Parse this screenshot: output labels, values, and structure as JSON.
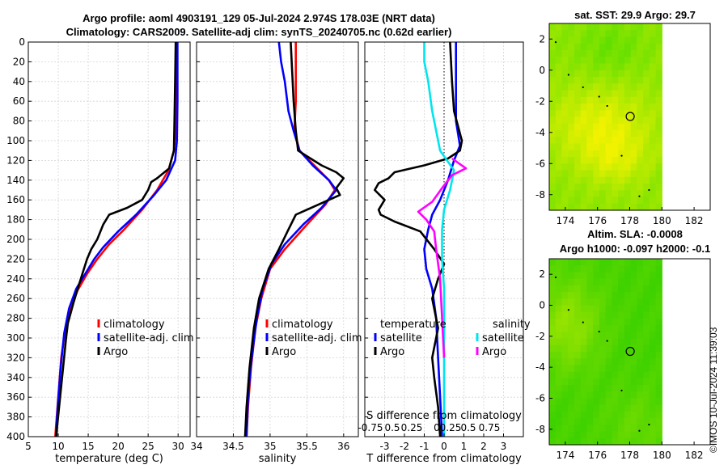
{
  "header": {
    "title_line1": "Argo profile: aoml 4903191_129 05-Jul-2024 2.974S 178.03E (NRT data)",
    "title_line2": "Climatology: CARS2009. Satellite-adj clim: synTS_20240705.nc (0.62d earlier)"
  },
  "colors": {
    "climatology": "#ff0000",
    "satellite": "#0000ff",
    "argo": "#000000",
    "satellite_salinity": "#00e5ee",
    "argo_salinity": "#ff00ff"
  },
  "credit": "©IMOS 10-Jul-2024 11:39:03",
  "chart_data": [
    {
      "id": "temperature-profile",
      "type": "line",
      "xlabel": "temperature (deg C)",
      "xlim": [
        5,
        32
      ],
      "xticks": [
        5,
        10,
        15,
        20,
        25,
        30
      ],
      "ylim": [
        0,
        400
      ],
      "yticks": [
        0,
        20,
        40,
        60,
        80,
        100,
        120,
        140,
        160,
        180,
        200,
        220,
        240,
        260,
        280,
        300,
        320,
        340,
        360,
        380,
        400
      ],
      "legend": [
        "climatology",
        "satellite-adj. clim",
        "Argo"
      ],
      "series": [
        {
          "name": "climatology",
          "color": "#ff0000",
          "points": [
            [
              29.8,
              0
            ],
            [
              29.8,
              40
            ],
            [
              29.7,
              80
            ],
            [
              29.3,
              110
            ],
            [
              28.4,
              130
            ],
            [
              26.5,
              150
            ],
            [
              24,
              170
            ],
            [
              21,
              190
            ],
            [
              18.5,
              205
            ],
            [
              16.5,
              220
            ],
            [
              14.8,
              235
            ],
            [
              13.2,
              252
            ],
            [
              12,
              270
            ],
            [
              11.2,
              290
            ],
            [
              10.5,
              320
            ],
            [
              10,
              360
            ],
            [
              9.5,
              400
            ]
          ]
        },
        {
          "name": "satellite-adj. clim",
          "color": "#0000ff",
          "points": [
            [
              29.9,
              0
            ],
            [
              29.9,
              60
            ],
            [
              29.8,
              100
            ],
            [
              29.5,
              120
            ],
            [
              28,
              140
            ],
            [
              26,
              155
            ],
            [
              23,
              175
            ],
            [
              20,
              192
            ],
            [
              17.5,
              208
            ],
            [
              16,
              220
            ],
            [
              14.5,
              235
            ],
            [
              13,
              250
            ],
            [
              11.8,
              270
            ],
            [
              11,
              295
            ],
            [
              10.4,
              330
            ],
            [
              9.9,
              370
            ],
            [
              9.6,
              400
            ]
          ]
        },
        {
          "name": "Argo",
          "color": "#000000",
          "points": [
            [
              29.6,
              0
            ],
            [
              29.5,
              40
            ],
            [
              29.4,
              80
            ],
            [
              29.3,
              110
            ],
            [
              28.5,
              128
            ],
            [
              26.5,
              138
            ],
            [
              25.5,
              142
            ],
            [
              25,
              150
            ],
            [
              24,
              160
            ],
            [
              21.5,
              168
            ],
            [
              18.5,
              175
            ],
            [
              17.5,
              185
            ],
            [
              16.5,
              200
            ],
            [
              15.5,
              210
            ],
            [
              14.8,
              220
            ],
            [
              13.5,
              245
            ],
            [
              12.5,
              265
            ],
            [
              11.6,
              285
            ],
            [
              11.3,
              300
            ],
            [
              10.8,
              330
            ],
            [
              10.3,
              360
            ],
            [
              9.8,
              390
            ],
            [
              9.7,
              400
            ]
          ]
        }
      ]
    },
    {
      "id": "salinity-profile",
      "type": "line",
      "xlabel": "salinity",
      "xlim": [
        34,
        36.2
      ],
      "xticks": [
        34,
        34.5,
        35,
        35.5,
        36
      ],
      "ylim": [
        0,
        400
      ],
      "legend": [
        "climatology",
        "satellite-adj. clim",
        "Argo"
      ],
      "series": [
        {
          "name": "climatology",
          "color": "#ff0000",
          "points": [
            [
              35.35,
              0
            ],
            [
              35.35,
              60
            ],
            [
              35.33,
              90
            ],
            [
              35.4,
              110
            ],
            [
              35.6,
              125
            ],
            [
              35.8,
              140
            ],
            [
              35.88,
              150
            ],
            [
              35.75,
              165
            ],
            [
              35.5,
              185
            ],
            [
              35.2,
              210
            ],
            [
              35,
              230
            ],
            [
              34.88,
              260
            ],
            [
              34.8,
              290
            ],
            [
              34.74,
              330
            ],
            [
              34.7,
              370
            ],
            [
              34.68,
              400
            ]
          ]
        },
        {
          "name": "satellite-adj. clim",
          "color": "#0000ff",
          "points": [
            [
              35.12,
              0
            ],
            [
              35.15,
              20
            ],
            [
              35.2,
              40
            ],
            [
              35.25,
              70
            ],
            [
              35.32,
              90
            ],
            [
              35.4,
              110
            ],
            [
              35.58,
              125
            ],
            [
              35.8,
              140
            ],
            [
              35.9,
              150
            ],
            [
              35.7,
              168
            ],
            [
              35.45,
              185
            ],
            [
              35.2,
              205
            ],
            [
              35.02,
              225
            ],
            [
              34.9,
              250
            ],
            [
              34.82,
              280
            ],
            [
              34.75,
              320
            ],
            [
              34.7,
              360
            ],
            [
              34.68,
              400
            ]
          ]
        },
        {
          "name": "Argo",
          "color": "#000000",
          "points": [
            [
              35.28,
              0
            ],
            [
              35.3,
              30
            ],
            [
              35.32,
              60
            ],
            [
              35.35,
              90
            ],
            [
              35.38,
              110
            ],
            [
              35.55,
              118
            ],
            [
              35.7,
              125
            ],
            [
              35.9,
              132
            ],
            [
              36,
              138
            ],
            [
              35.9,
              148
            ],
            [
              35.95,
              155
            ],
            [
              35.65,
              165
            ],
            [
              35.35,
              175
            ],
            [
              35.25,
              190
            ],
            [
              35.12,
              210
            ],
            [
              34.98,
              230
            ],
            [
              34.85,
              260
            ],
            [
              34.78,
              290
            ],
            [
              34.72,
              330
            ],
            [
              34.68,
              370
            ],
            [
              34.66,
              400
            ]
          ]
        }
      ]
    },
    {
      "id": "difference-profile",
      "type": "line",
      "xlabel": "T difference from climatology",
      "xlabel_top": "S difference from climatology",
      "xlim": [
        -4,
        4
      ],
      "xticks": [
        -3,
        -2,
        -1,
        0,
        1,
        2,
        3
      ],
      "s_ticks": [
        "-0.75",
        "0.5",
        "0.25",
        "0",
        "0.25",
        "0.5",
        "0.75"
      ],
      "ylim": [
        0,
        400
      ],
      "legend_groups": [
        {
          "label": "temperature",
          "entries": [
            "satellite",
            "Argo"
          ]
        },
        {
          "label": "salinity",
          "entries": [
            "satellite",
            "Argo"
          ]
        }
      ],
      "series": [
        {
          "name": "temperature satellite",
          "color": "#0000ff",
          "points": [
            [
              0.6,
              0
            ],
            [
              0.6,
              40
            ],
            [
              0.6,
              80
            ],
            [
              0.8,
              105
            ],
            [
              0.5,
              120
            ],
            [
              0.2,
              140
            ],
            [
              -0.2,
              160
            ],
            [
              -0.6,
              175
            ],
            [
              -0.8,
              190
            ],
            [
              -1,
              210
            ],
            [
              -0.9,
              230
            ],
            [
              -0.6,
              250
            ],
            [
              -0.4,
              280
            ],
            [
              -0.3,
              320
            ],
            [
              -0.2,
              360
            ],
            [
              -0.1,
              400
            ]
          ]
        },
        {
          "name": "temperature Argo",
          "color": "#000000",
          "points": [
            [
              0.3,
              0
            ],
            [
              0.4,
              40
            ],
            [
              0.5,
              70
            ],
            [
              0.9,
              100
            ],
            [
              0.8,
              110
            ],
            [
              0.2,
              118
            ],
            [
              -1,
              125
            ],
            [
              -2.5,
              132
            ],
            [
              -2.8,
              138
            ],
            [
              -3.3,
              143
            ],
            [
              -3.5,
              150
            ],
            [
              -3,
              160
            ],
            [
              -3.3,
              170
            ],
            [
              -3.2,
              175
            ],
            [
              -2.5,
              182
            ],
            [
              -1.2,
              192
            ],
            [
              -0.5,
              210
            ],
            [
              0,
              225
            ],
            [
              -0.3,
              240
            ],
            [
              -0.6,
              260
            ],
            [
              -0.3,
              290
            ],
            [
              -0.6,
              320
            ],
            [
              -0.5,
              340
            ],
            [
              -0.3,
              370
            ],
            [
              -0.2,
              400
            ]
          ]
        },
        {
          "name": "salinity satellite",
          "color": "#00e5ee",
          "points": [
            [
              -1,
              0
            ],
            [
              -1,
              20
            ],
            [
              -0.8,
              40
            ],
            [
              -0.6,
              70
            ],
            [
              -0.4,
              90
            ],
            [
              -0.2,
              110
            ],
            [
              0.5,
              130
            ],
            [
              0.3,
              150
            ],
            [
              0,
              170
            ],
            [
              -0.1,
              190
            ],
            [
              -0.1,
              220
            ],
            [
              0,
              250
            ],
            [
              0,
              300
            ],
            [
              0,
              350
            ],
            [
              0,
              400
            ]
          ]
        },
        {
          "name": "salinity Argo",
          "color": "#ff00ff",
          "points": [
            [
              0.4,
              118
            ],
            [
              1.1,
              128
            ],
            [
              0.4,
              135
            ],
            [
              -0.1,
              148
            ],
            [
              -0.6,
              162
            ],
            [
              -1.3,
              172
            ],
            [
              -0.9,
              180
            ],
            [
              -0.5,
              192
            ],
            [
              -0.4,
              210
            ],
            [
              -0.2,
              240
            ],
            [
              -0.1,
              280
            ],
            [
              0,
              320
            ]
          ]
        }
      ]
    },
    {
      "id": "sst-map",
      "type": "heatmap",
      "title": "sat. SST: 29.9 Argo: 29.7",
      "xlim": [
        173,
        183
      ],
      "xticks": [
        174,
        176,
        178,
        180,
        182
      ],
      "ylim": [
        -9,
        3
      ],
      "yticks": [
        2,
        0,
        -2,
        -4,
        -6,
        -8
      ],
      "data_extent_lon": [
        173,
        180
      ],
      "argo_position": [
        178.03,
        -2.974
      ]
    },
    {
      "id": "sla-map",
      "type": "heatmap",
      "title_line1": "Altim. SLA: -0.0008",
      "title_line2": "Argo h1000: -0.097 h2000: -0.1",
      "xlim": [
        173,
        183
      ],
      "xticks": [
        174,
        176,
        178,
        180,
        182
      ],
      "ylim": [
        -9,
        3
      ],
      "yticks": [
        2,
        0,
        -2,
        -4,
        -6,
        -8
      ],
      "data_extent_lon": [
        173,
        180
      ],
      "argo_position": [
        178.03,
        -2.974
      ]
    }
  ]
}
